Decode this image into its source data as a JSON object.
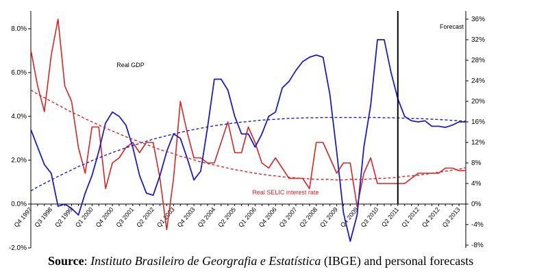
{
  "chart_data": {
    "type": "line",
    "categories": [
      "Q4 1997",
      "Q1 1998",
      "Q2 1998",
      "Q3 1998",
      "Q4 1998",
      "Q1 1999",
      "Q2 1999",
      "Q3 1999",
      "Q4 1999",
      "Q1 2000",
      "Q2 2000",
      "Q3 2000",
      "Q4 2000",
      "Q1 2001",
      "Q2 2001",
      "Q3 2001",
      "Q4 2001",
      "Q1 2002",
      "Q2 2002",
      "Q3 2002",
      "Q4 2002",
      "Q1 2003",
      "Q2 2003",
      "Q3 2003",
      "Q4 2003",
      "Q1 2004",
      "Q2 2004",
      "Q3 2004",
      "Q4 2004",
      "Q1 2005",
      "Q2 2005",
      "Q3 2005",
      "Q4 2005",
      "Q1 2006",
      "Q2 2006",
      "Q3 2006",
      "Q4 2006",
      "Q1 2007",
      "Q2 2007",
      "Q3 2007",
      "Q4 2007",
      "Q1 2008",
      "Q2 2008",
      "Q3 2008",
      "Q4 2008",
      "Q1 2009",
      "Q2 2009",
      "Q3 2009",
      "Q4 2009",
      "Q1 2010",
      "Q2 2010",
      "Q3 2010",
      "Q4 2010",
      "Q1 2011",
      "Q2 2011",
      "Q3 2011",
      "Q4 2011",
      "Q1 2012",
      "Q2 2012",
      "Q3 2012",
      "Q4 2012",
      "Q1 2013",
      "Q2 2013",
      "Q3 2013",
      "Q4 2013"
    ],
    "tick_labels": [
      "Q4 1997",
      "Q3 1998",
      "Q2 1999",
      "Q1 2000",
      "Q4 2000",
      "Q3 2001",
      "Q2 2002",
      "Q1 2003",
      "Q4 2003",
      "Q3 2004",
      "Q2 2005",
      "Q1 2006",
      "Q4 2006",
      "Q3 2007",
      "Q2 2008",
      "Q1 2009",
      "Q4 2009",
      "Q3 2010",
      "Q2 2011",
      "Q1 2012",
      "Q4 2012",
      "Q3 2013"
    ],
    "forecast_start": "Q2 2011",
    "forecast_label": "Forecast",
    "left_axis": {
      "min": -2,
      "max": 9,
      "ticks": [
        -2,
        0,
        2,
        4,
        6,
        8
      ],
      "tick_labels": [
        "-2.0%",
        "0.0%",
        "2.0%",
        "4.0%",
        "6.0%",
        "8.0%"
      ]
    },
    "right_axis": {
      "min": -8,
      "max": 38,
      "ticks": [
        -8,
        -4,
        0,
        4,
        8,
        12,
        16,
        20,
        24,
        28,
        32,
        36
      ],
      "tick_labels": [
        "-8%",
        "-4%",
        "0%",
        "4%",
        "8%",
        "12%",
        "16%",
        "20%",
        "24%",
        "28%",
        "32%",
        "36%"
      ]
    },
    "series": [
      {
        "name": "Real GDP",
        "axis": "left",
        "color": "#1a1acc",
        "values": [
          3.4,
          2.6,
          1.8,
          1.4,
          -0.1,
          0.0,
          -0.2,
          -0.5,
          0.5,
          1.3,
          2.4,
          3.7,
          4.2,
          4.0,
          3.6,
          2.6,
          1.3,
          0.5,
          0.4,
          1.3,
          2.4,
          3.2,
          3.0,
          2.1,
          1.1,
          1.5,
          3.5,
          5.7,
          5.7,
          5.2,
          4.0,
          3.2,
          3.2,
          2.6,
          3.2,
          4.0,
          4.2,
          5.3,
          5.6,
          6.1,
          6.5,
          6.7,
          6.8,
          6.7,
          5.0,
          2.4,
          -0.4,
          -1.7,
          -0.5,
          2.6,
          4.5,
          7.5,
          7.5,
          6.0,
          4.8,
          4.0,
          3.8,
          3.75,
          3.8,
          3.55,
          3.55,
          3.5,
          3.6,
          3.75,
          3.75
        ]
      },
      {
        "name": "Real SELIC interest rate",
        "axis": "right",
        "color": "#dd2222",
        "values": [
          30,
          23,
          18,
          29,
          36,
          23,
          20,
          11,
          6,
          15,
          15,
          3,
          8,
          9,
          11,
          12,
          10,
          12,
          12,
          5,
          -5,
          5,
          20,
          14,
          9,
          9,
          8,
          8,
          12,
          16,
          10,
          10,
          15,
          12,
          8,
          7,
          9,
          7,
          5,
          5,
          5,
          3,
          12,
          12,
          9,
          6,
          8,
          8,
          -0.5,
          6,
          9,
          4,
          4,
          4,
          4,
          4,
          5,
          6,
          6,
          6,
          6,
          7,
          7,
          6.5,
          6.5
        ]
      }
    ],
    "trends": [
      {
        "of": "Real GDP",
        "axis": "left",
        "color": "#1a1acc",
        "style": "dashed",
        "values": [
          0.6,
          0.78,
          0.94,
          1.1,
          1.26,
          1.41,
          1.56,
          1.71,
          1.84,
          1.98,
          2.11,
          2.23,
          2.35,
          2.46,
          2.57,
          2.67,
          2.77,
          2.87,
          2.96,
          3.04,
          3.12,
          3.2,
          3.27,
          3.34,
          3.4,
          3.46,
          3.52,
          3.57,
          3.62,
          3.66,
          3.7,
          3.74,
          3.77,
          3.8,
          3.83,
          3.85,
          3.87,
          3.89,
          3.91,
          3.92,
          3.93,
          3.94,
          3.94,
          3.95,
          3.95,
          3.95,
          3.95,
          3.95,
          3.95,
          3.95,
          3.95,
          3.95,
          3.94,
          3.94,
          3.93,
          3.92,
          3.91,
          3.9,
          3.89,
          3.87,
          3.86,
          3.84,
          3.82,
          3.8,
          3.78
        ]
      },
      {
        "of": "Real SELIC interest rate",
        "axis": "right",
        "color": "#dd2222",
        "style": "dashed",
        "values": [
          22.2,
          21.4,
          20.7,
          20.0,
          19.3,
          18.6,
          17.9,
          17.3,
          16.6,
          16.0,
          15.4,
          14.8,
          14.2,
          13.7,
          13.1,
          12.6,
          12.1,
          11.6,
          11.1,
          10.6,
          10.2,
          9.8,
          9.3,
          9.0,
          8.6,
          8.2,
          7.9,
          7.6,
          7.3,
          7.0,
          6.7,
          6.5,
          6.2,
          6.0,
          5.8,
          5.6,
          5.5,
          5.3,
          5.2,
          5.1,
          5.0,
          4.9,
          4.8,
          4.8,
          4.8,
          4.7,
          4.7,
          4.8,
          4.8,
          4.8,
          4.9,
          5.0,
          5.0,
          5.1,
          5.2,
          5.4,
          5.5,
          5.6,
          5.8,
          6.0,
          6.2,
          6.4,
          6.6,
          6.8,
          7.1
        ]
      }
    ],
    "annotations": [
      {
        "text": "Real GDP",
        "color": "#000000",
        "near": "Q2 2000"
      },
      {
        "text": "Real SELIC interest rate",
        "color": "#dd2222",
        "near": "Q2 2006"
      },
      {
        "text": "Forecast",
        "color": "#000000",
        "near": "Q2 2013"
      }
    ]
  },
  "source": {
    "label": "Source",
    "separator": ": ",
    "italic": "Instituto Brasileiro de Georgrafia e Estatística",
    "rest": " (IBGE) and personal forecasts"
  }
}
